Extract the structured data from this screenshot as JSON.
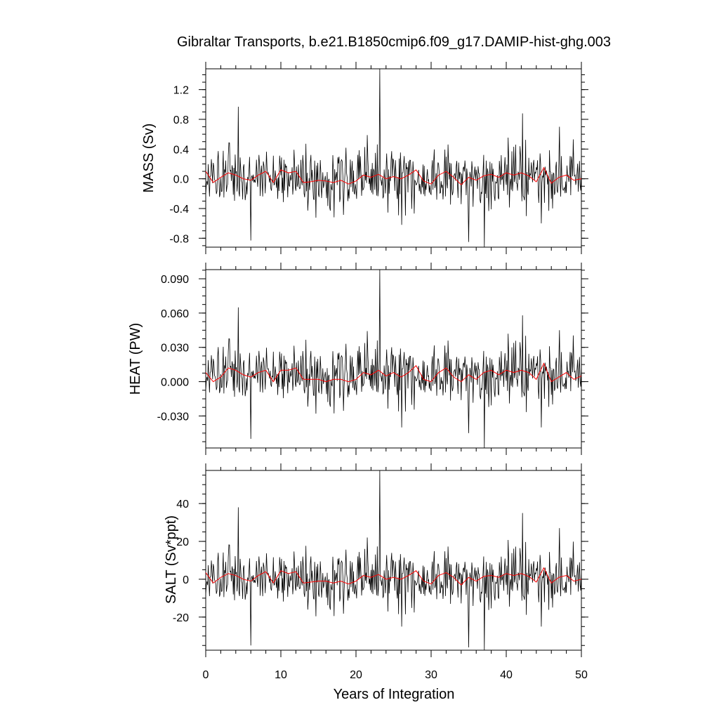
{
  "chart_data": [
    {
      "type": "line",
      "id": "mass",
      "title": "Gibraltar Transports, b.e21.B1850cmip6.f09_g17.DAMIP-hist-ghg.003",
      "ylabel": "MASS (Sv)",
      "xlim": [
        0,
        50
      ],
      "ylim": [
        -0.92,
        1.48
      ],
      "yticks": [
        "1.2",
        "0.8",
        "0.4",
        "0.0",
        "-0.4",
        "-0.8"
      ],
      "grid": false,
      "series": [
        {
          "color": "#000000",
          "stats": {
            "mean": 0.0,
            "sd": 0.2
          },
          "spikes": [
            [
              4.3,
              0.97
            ],
            [
              6.0,
              -0.83
            ],
            [
              23.2,
              1.48
            ],
            [
              35.0,
              -0.85
            ],
            [
              37.1,
              -0.92
            ],
            [
              42.2,
              0.88
            ],
            [
              47.1,
              0.7
            ],
            [
              26.1,
              -0.62
            ],
            [
              44.7,
              -0.6
            ]
          ]
        },
        {
          "color": "#ff0000",
          "x": [
            0,
            1,
            2,
            3,
            4,
            5,
            6,
            7,
            8,
            9,
            10,
            11,
            12,
            13,
            14,
            15,
            16,
            17,
            18,
            19,
            20,
            21,
            22,
            23,
            24,
            25,
            26,
            27,
            28,
            29,
            30,
            31,
            32,
            33,
            34,
            35,
            36,
            37,
            38,
            39,
            40,
            41,
            42,
            43,
            44,
            45,
            46,
            47,
            48,
            49,
            50
          ],
          "values": [
            0.1,
            -0.05,
            0.02,
            0.08,
            0.05,
            0.0,
            -0.02,
            0.05,
            0.1,
            -0.05,
            0.12,
            0.08,
            0.1,
            -0.05,
            -0.04,
            -0.02,
            -0.03,
            -0.05,
            -0.02,
            -0.07,
            -0.03,
            0.05,
            0.02,
            0.06,
            0.0,
            0.03,
            0.0,
            0.05,
            0.12,
            -0.03,
            -0.07,
            0.05,
            0.1,
            0.02,
            -0.08,
            0.02,
            -0.02,
            0.04,
            0.06,
            0.02,
            0.08,
            0.05,
            0.08,
            0.04,
            -0.04,
            0.15,
            -0.06,
            0.02,
            0.05,
            -0.02,
            0.0
          ]
        }
      ]
    },
    {
      "type": "line",
      "id": "heat",
      "ylabel": "HEAT (PW)",
      "xlim": [
        0,
        50
      ],
      "ylim": [
        -0.058,
        0.098
      ],
      "yticks": [
        "0.090",
        "0.060",
        "0.030",
        "0.000",
        "-0.030"
      ],
      "grid": false,
      "series": [
        {
          "color": "#000000",
          "stats": {
            "mean": 0.006,
            "sd": 0.013
          },
          "spikes": [
            [
              4.3,
              0.065
            ],
            [
              6.0,
              -0.05
            ],
            [
              23.2,
              0.098
            ],
            [
              35.0,
              -0.045
            ],
            [
              37.1,
              -0.058
            ],
            [
              42.2,
              0.058
            ],
            [
              47.1,
              0.045
            ],
            [
              26.1,
              -0.04
            ],
            [
              44.7,
              -0.04
            ]
          ]
        },
        {
          "color": "#ff0000",
          "x": [
            0,
            1,
            2,
            3,
            4,
            5,
            6,
            7,
            8,
            9,
            10,
            11,
            12,
            13,
            14,
            15,
            16,
            17,
            18,
            19,
            20,
            21,
            22,
            23,
            24,
            25,
            26,
            27,
            28,
            29,
            30,
            31,
            32,
            33,
            34,
            35,
            36,
            37,
            38,
            39,
            40,
            41,
            42,
            43,
            44,
            45,
            46,
            47,
            48,
            49,
            50
          ],
          "values": [
            0.008,
            0.0,
            0.004,
            0.012,
            0.01,
            0.006,
            0.004,
            0.008,
            0.01,
            0.0,
            0.01,
            0.01,
            0.012,
            0.002,
            0.002,
            0.002,
            0.0,
            0.002,
            0.002,
            0.0,
            0.002,
            0.008,
            0.006,
            0.01,
            0.005,
            0.008,
            0.004,
            0.008,
            0.014,
            0.002,
            0.0,
            0.008,
            0.012,
            0.004,
            0.0,
            0.006,
            0.002,
            0.008,
            0.01,
            0.006,
            0.01,
            0.008,
            0.01,
            0.008,
            0.002,
            0.016,
            0.0,
            0.004,
            0.008,
            0.002,
            0.005
          ]
        }
      ]
    },
    {
      "type": "line",
      "id": "salt",
      "ylabel": "SALT (Sv*ppt)",
      "xlabel": "Years of Integration",
      "xlim": [
        0,
        50
      ],
      "ylim": [
        -37.5,
        57.5
      ],
      "yticks": [
        "40",
        "20",
        "0",
        "-20"
      ],
      "xticks": [
        "0",
        "10",
        "20",
        "30",
        "40",
        "50"
      ],
      "grid": false,
      "series": [
        {
          "color": "#000000",
          "stats": {
            "mean": 0.0,
            "sd": 7.5
          },
          "spikes": [
            [
              4.3,
              38
            ],
            [
              6.0,
              -35
            ],
            [
              23.2,
              57.5
            ],
            [
              35.0,
              -36
            ],
            [
              37.1,
              -37.5
            ],
            [
              42.2,
              35
            ],
            [
              47.1,
              27
            ],
            [
              26.1,
              -25
            ],
            [
              44.7,
              -25
            ]
          ]
        },
        {
          "color": "#ff0000",
          "x": [
            0,
            1,
            2,
            3,
            4,
            5,
            6,
            7,
            8,
            9,
            10,
            11,
            12,
            13,
            14,
            15,
            16,
            17,
            18,
            19,
            20,
            21,
            22,
            23,
            24,
            25,
            26,
            27,
            28,
            29,
            30,
            31,
            32,
            33,
            34,
            35,
            36,
            37,
            38,
            39,
            40,
            41,
            42,
            43,
            44,
            45,
            46,
            47,
            48,
            49,
            50
          ],
          "values": [
            3.5,
            -2.0,
            1.0,
            3.0,
            2.0,
            0.0,
            -1.0,
            2.0,
            4.0,
            -2.0,
            4.5,
            3.0,
            4.0,
            -2.0,
            -1.5,
            -1.0,
            -1.0,
            -2.0,
            -1.0,
            -2.5,
            -1.0,
            2.0,
            1.0,
            2.5,
            0.0,
            1.0,
            0.0,
            2.0,
            4.5,
            -1.0,
            -2.5,
            2.0,
            3.5,
            1.0,
            -3.0,
            1.0,
            -1.0,
            1.5,
            2.0,
            1.0,
            3.0,
            2.0,
            3.0,
            1.5,
            -1.5,
            6.0,
            -2.0,
            1.0,
            2.0,
            -1.0,
            0.0
          ]
        }
      ]
    }
  ]
}
